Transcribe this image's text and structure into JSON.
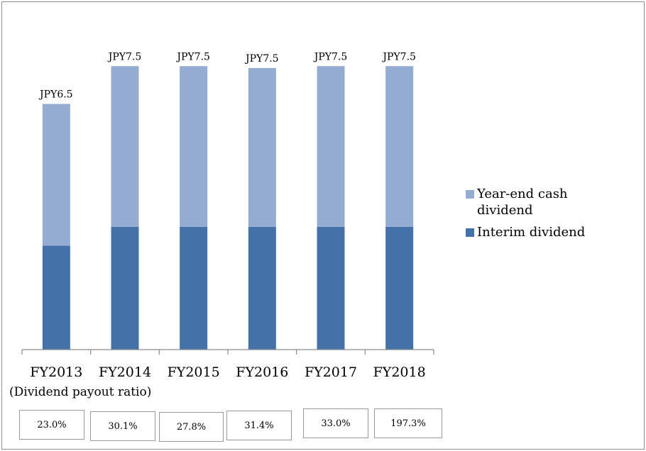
{
  "chart_data": {
    "type": "bar",
    "stacked": true,
    "categories": [
      "FY2013",
      "FY2014",
      "FY2015",
      "FY2016",
      "FY2017",
      "FY2018"
    ],
    "series": [
      {
        "name": "Interim dividend",
        "values": [
          2.75,
          3.25,
          3.25,
          3.25,
          3.25,
          3.25
        ],
        "color": "#4472a8"
      },
      {
        "name": "Year-end cash dividend",
        "values": [
          3.75,
          4.25,
          4.25,
          4.2,
          4.25,
          4.25
        ],
        "color": "#94abd2"
      }
    ],
    "data_labels": [
      "JPY6.5",
      "JPY7.5",
      "JPY7.5",
      "JPY7.5",
      "JPY7.5",
      "JPY7.5"
    ],
    "ylim": [
      0,
      8
    ],
    "grid": false,
    "legend_position": "right"
  },
  "payout": {
    "caption": "(Dividend payout ratio)",
    "ratios": [
      "23.0%",
      "30.1%",
      "27.8%",
      "31.4%",
      "33.0%",
      "197.3%"
    ]
  }
}
